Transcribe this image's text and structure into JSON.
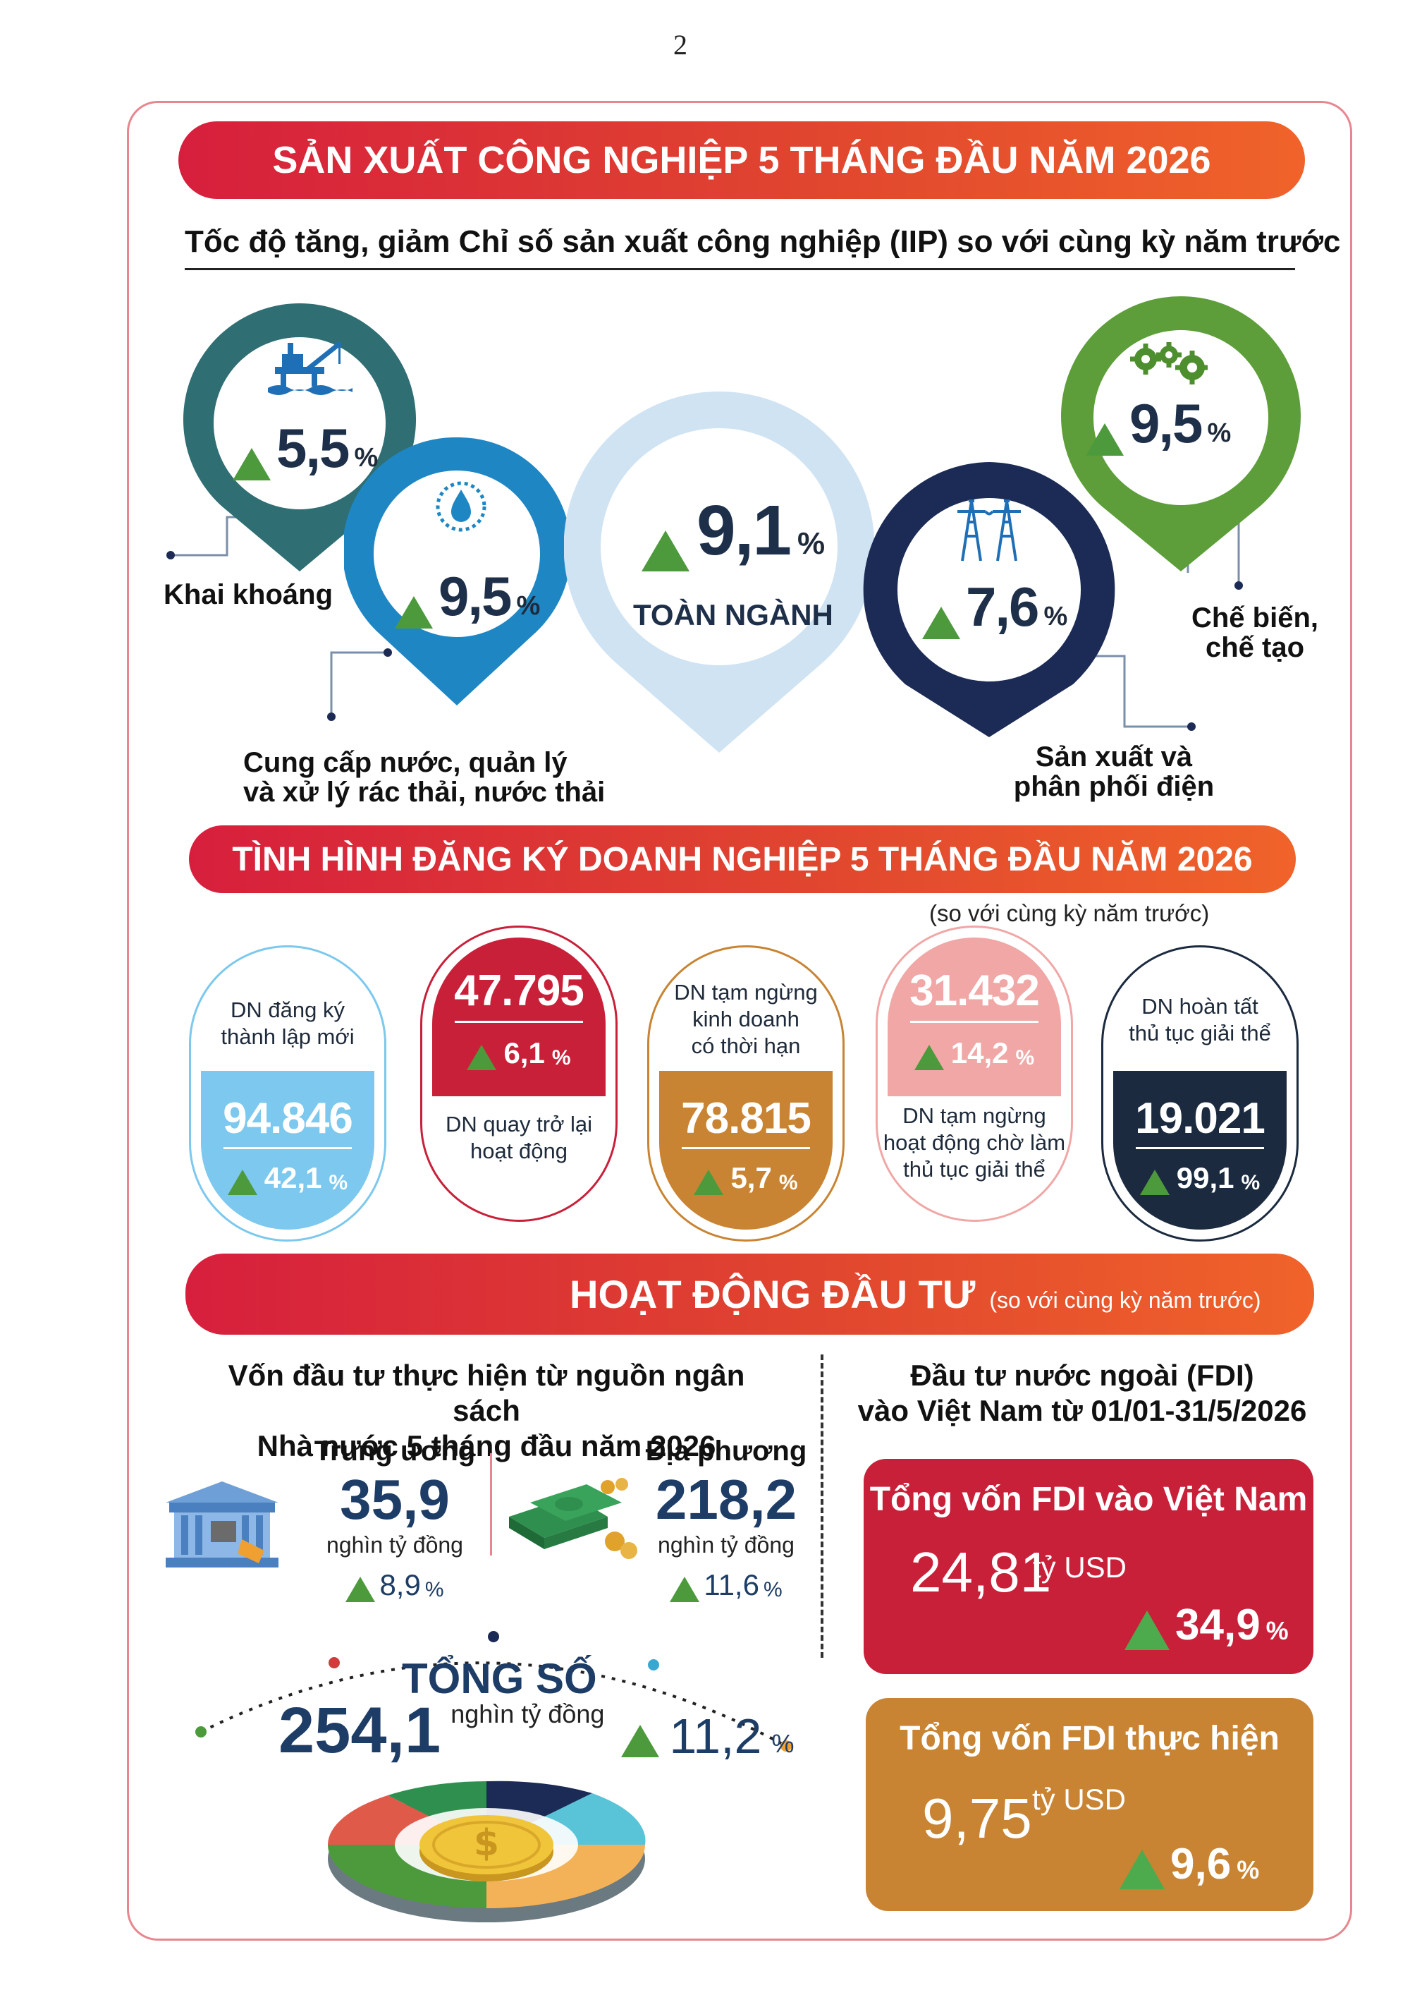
{
  "page_number": "2",
  "section1": {
    "title": "SẢN XUẤT CÔNG NGHIỆP 5 THÁNG ĐẦU NĂM 2026",
    "subtitle": "Tốc độ tăng, giảm Chỉ số sản xuất công nghiệp (IIP) so với cùng kỳ năm trước",
    "pins": [
      {
        "label": "Khai khoáng",
        "value": "5,5",
        "unit": "%",
        "color": "#2f6e73",
        "icon": "oil-rig-icon"
      },
      {
        "label_line1": "Cung cấp nước, quản lý",
        "label_line2": "và xử lý rác thải, nước thải",
        "value": "9,5",
        "unit": "%",
        "color": "#1f86c4",
        "icon": "water-drop-icon"
      },
      {
        "label": "TOÀN NGÀNH",
        "value": "9,1",
        "unit": "%",
        "color": "#cfe3f3"
      },
      {
        "label_line1": "Sản xuất và",
        "label_line2": "phân phối điện",
        "value": "7,6",
        "unit": "%",
        "color": "#1c2b55",
        "icon": "power-tower-icon"
      },
      {
        "label_line1": "Chế biến,",
        "label_line2": "chế tạo",
        "value": "9,5",
        "unit": "%",
        "color": "#5d9e3a",
        "icon": "gears-icon"
      }
    ]
  },
  "section2": {
    "title": "TÌNH HÌNH ĐĂNG KÝ DOANH NGHIỆP 5 THÁNG ĐẦU NĂM 2026",
    "note": "(so với cùng kỳ năm trước)",
    "cards": [
      {
        "text_line1": "DN đăng ký",
        "text_line2": "thành lập mới",
        "value": "94.846",
        "pct": "42,1",
        "unit": "%",
        "color": "#7cc8ee"
      },
      {
        "text_line1": "DN quay trở lại",
        "text_line2": "hoạt động",
        "value": "47.795",
        "pct": "6,1",
        "unit": "%",
        "color": "#c9203a"
      },
      {
        "text_line1": "DN tạm ngừng",
        "text_line2": "kinh doanh",
        "text_line3": "có thời hạn",
        "value": "78.815",
        "pct": "5,7",
        "unit": "%",
        "color": "#c88432"
      },
      {
        "text_line1": "DN tạm ngừng",
        "text_line2": "hoạt động chờ làm",
        "text_line3": "thủ tục giải thể",
        "value": "31.432",
        "pct": "14,2",
        "unit": "%",
        "color": "#f0a7a6"
      },
      {
        "text_line1": "DN hoàn tất",
        "text_line2": "thủ tục giải thể",
        "value": "19.021",
        "pct": "99,1",
        "unit": "%",
        "color": "#1b2a3f"
      }
    ]
  },
  "section3": {
    "title": "HOẠT ĐỘNG ĐẦU TƯ",
    "note": "(so với cùng kỳ năm trước)",
    "left_heading_line1": "Vốn đầu tư thực hiện từ nguồn ngân sách",
    "left_heading_line2": "Nhà nước 5 tháng đầu năm 2026",
    "central": {
      "label": "Trung ương",
      "value": "35,9",
      "unit": "nghìn tỷ đồng",
      "pct": "8,9",
      "pct_unit": "%"
    },
    "local": {
      "label": "Địa phương",
      "value": "218,2",
      "unit": "nghìn tỷ đồng",
      "pct": "11,6",
      "pct_unit": "%"
    },
    "total": {
      "label": "TỔNG SỐ",
      "value": "254,1",
      "unit": "nghìn tỷ đồng",
      "pct": "11,2",
      "pct_unit": "%"
    },
    "right_heading_line1": "Đầu tư nước ngoài (FDI)",
    "right_heading_line2": "vào Việt Nam từ 01/01-31/5/2026",
    "fdi_total": {
      "title": "Tổng vốn FDI vào Việt Nam",
      "value": "24,81",
      "unit": "tỷ USD",
      "pct": "34,9",
      "pct_unit": "%",
      "color": "#c9203a"
    },
    "fdi_disbursed": {
      "title": "Tổng vốn FDI thực hiện",
      "value": "9,75",
      "unit": "tỷ USD",
      "pct": "9,6",
      "pct_unit": "%",
      "color": "#c88432"
    }
  }
}
